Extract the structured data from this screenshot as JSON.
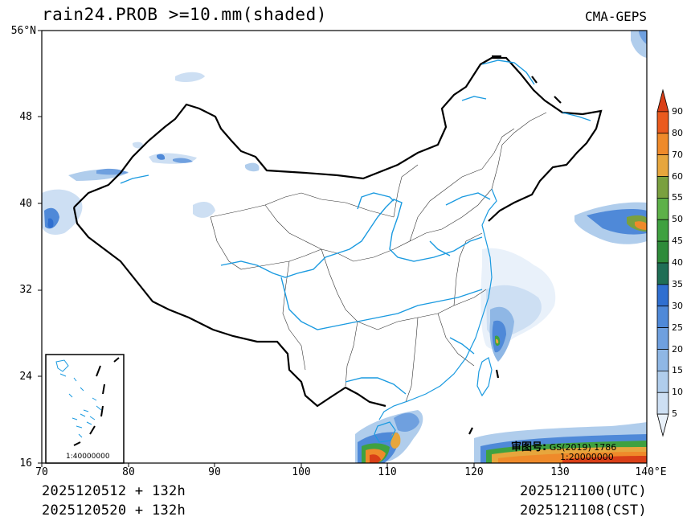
{
  "header": {
    "title": "rain24.PROB >=10.mm(shaded)",
    "source": "CMA-GEPS"
  },
  "axes": {
    "lat_ticks": [
      {
        "value": 16,
        "label": "16"
      },
      {
        "value": 24,
        "label": "24"
      },
      {
        "value": 32,
        "label": "32"
      },
      {
        "value": 40,
        "label": "40"
      },
      {
        "value": 48,
        "label": "48"
      },
      {
        "value": 56,
        "label": "56°N"
      }
    ],
    "lon_ticks": [
      {
        "value": 70,
        "label": "70"
      },
      {
        "value": 80,
        "label": "80"
      },
      {
        "value": 90,
        "label": "90"
      },
      {
        "value": 100,
        "label": "100"
      },
      {
        "value": 110,
        "label": "110"
      },
      {
        "value": 120,
        "label": "120"
      },
      {
        "value": 130,
        "label": "130"
      },
      {
        "value": 140,
        "label": "140°E"
      }
    ],
    "lat_range": [
      16,
      56
    ],
    "lon_range": [
      70,
      140
    ]
  },
  "colorbar": {
    "levels": [
      "5",
      "10",
      "15",
      "20",
      "25",
      "30",
      "35",
      "40",
      "45",
      "50",
      "55",
      "60",
      "70",
      "80",
      "90"
    ],
    "colors": [
      "#e9f1fa",
      "#cddff3",
      "#b0cdec",
      "#8fb7e5",
      "#6fa0df",
      "#4f89d8",
      "#2f6fd0",
      "#1f6e55",
      "#2e8b3a",
      "#3fa140",
      "#5db148",
      "#7aa03f",
      "#e7a63d",
      "#ef8a2a",
      "#ea5a1e",
      "#d93f17"
    ]
  },
  "map": {
    "approval_label": "审图号:",
    "approval_code": "GS(2019) 1786",
    "main_scale": "1:20000000",
    "inset_scale": "1:40000000"
  },
  "footer": {
    "init_1": "2025120512 + 132h",
    "init_2": "2025120520 + 132h",
    "valid_utc": "2025121100(UTC)",
    "valid_cst": "2025121108(CST)"
  }
}
